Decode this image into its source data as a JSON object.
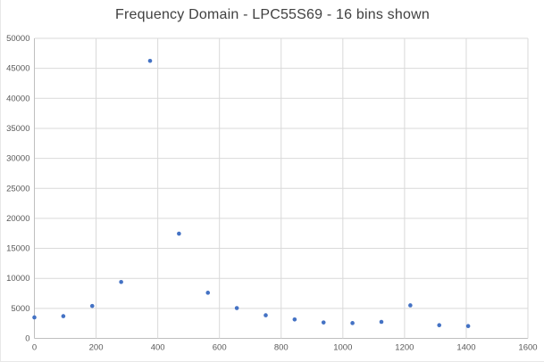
{
  "chart_data": {
    "type": "scatter",
    "title": "Frequency Domain - LPC55S69 - 16 bins shown",
    "xlabel": "",
    "ylabel": "",
    "x": [
      0,
      93.75,
      187.5,
      281.25,
      375,
      468.75,
      562.5,
      656.25,
      750,
      843.75,
      937.5,
      1031.25,
      1125,
      1218.75,
      1312.5,
      1406.25
    ],
    "y": [
      3500,
      3700,
      5400,
      9400,
      46250,
      17450,
      7600,
      5050,
      3850,
      3150,
      2650,
      2550,
      2750,
      5500,
      2200,
      2050
    ],
    "xlim": [
      0,
      1600
    ],
    "ylim": [
      0,
      50000
    ],
    "x_ticks": [
      0,
      200,
      400,
      600,
      800,
      1000,
      1200,
      1400,
      1600
    ],
    "y_ticks": [
      0,
      5000,
      10000,
      15000,
      20000,
      25000,
      30000,
      35000,
      40000,
      45000,
      50000
    ],
    "grid": true,
    "legend_position": "none",
    "colors": {
      "point": "#4472C4",
      "gridline": "#D9D9D9",
      "axis_line": "#BFBFBF",
      "tick_label": "#595959",
      "title": "#404040",
      "background": "#FFFFFF"
    }
  }
}
